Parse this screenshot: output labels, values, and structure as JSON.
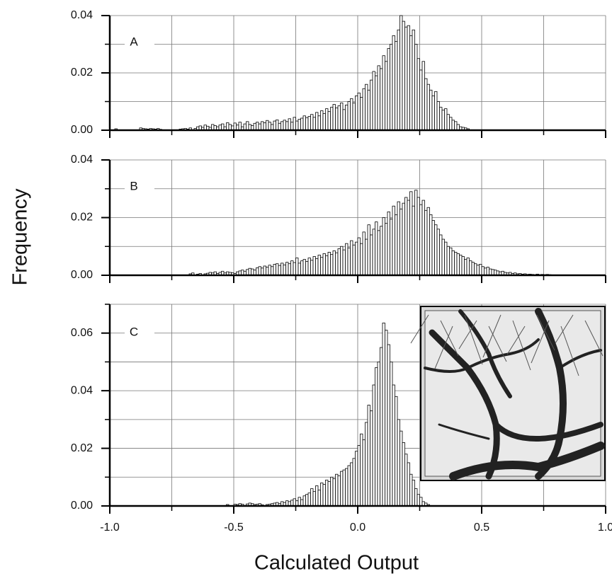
{
  "ylabel": "Frequency",
  "xlabel": "Calculated Output",
  "chart_data": [
    {
      "type": "histogram",
      "annotation": "A",
      "color": "#ffffff",
      "grid": true,
      "xlim": [
        -1,
        1
      ],
      "xticks": [
        -1,
        -0.5,
        0,
        0.5,
        1
      ],
      "xminorticks": [
        -0.75,
        -0.25,
        0.25,
        0.75
      ],
      "ylim": [
        0,
        0.04
      ],
      "yticks": [
        {
          "value": 0,
          "label": "0.00"
        },
        {
          "value": 0.02,
          "label": "0.02"
        },
        {
          "value": 0.04,
          "label": "0.04"
        }
      ],
      "yminorticks": [
        0.01,
        0.03
      ],
      "bins": [
        -0.98,
        -0.97,
        -0.96,
        -0.95,
        -0.94,
        -0.93,
        -0.92,
        -0.91,
        -0.9,
        -0.89,
        -0.88,
        -0.87,
        -0.86,
        -0.85,
        -0.84,
        -0.83,
        -0.82,
        -0.81,
        -0.8,
        -0.79,
        -0.78,
        -0.77,
        -0.76,
        -0.75,
        -0.74,
        -0.73,
        -0.72,
        -0.71,
        -0.7,
        -0.69,
        -0.68,
        -0.67,
        -0.66,
        -0.65,
        -0.64,
        -0.63,
        -0.62,
        -0.61,
        -0.6,
        -0.59,
        -0.58,
        -0.57,
        -0.56,
        -0.55,
        -0.54,
        -0.53,
        -0.52,
        -0.51,
        -0.5,
        -0.49,
        -0.48,
        -0.47,
        -0.46,
        -0.45,
        -0.44,
        -0.43,
        -0.42,
        -0.41,
        -0.4,
        -0.39,
        -0.38,
        -0.37,
        -0.36,
        -0.35,
        -0.34,
        -0.33,
        -0.32,
        -0.31,
        -0.3,
        -0.29,
        -0.28,
        -0.27,
        -0.26,
        -0.25,
        -0.24,
        -0.23,
        -0.22,
        -0.21,
        -0.2,
        -0.19,
        -0.18,
        -0.17,
        -0.16,
        -0.15,
        -0.14,
        -0.13,
        -0.12,
        -0.11,
        -0.1,
        -0.09,
        -0.08,
        -0.07,
        -0.06,
        -0.05,
        -0.04,
        -0.03,
        -0.02,
        -0.01,
        0,
        0.01,
        0.02,
        0.03,
        0.04,
        0.05,
        0.06,
        0.07,
        0.08,
        0.09,
        0.1,
        0.11,
        0.12,
        0.13,
        0.14,
        0.15,
        0.16,
        0.17,
        0.18,
        0.19,
        0.2,
        0.21,
        0.22,
        0.23,
        0.24,
        0.25,
        0.26,
        0.27,
        0.28,
        0.29,
        0.3,
        0.31,
        0.32,
        0.33,
        0.34,
        0.35,
        0.36,
        0.37,
        0.38,
        0.39,
        0.4,
        0.41,
        0.42,
        0.43,
        0.44,
        0.45
      ],
      "values": [
        0.0005,
        0,
        0,
        0,
        0,
        0,
        0,
        0,
        0,
        0,
        0.0008,
        0.0006,
        0.0005,
        0.0004,
        0.0006,
        0.0005,
        0.0004,
        0.0006,
        0.0003,
        0,
        0,
        0,
        0,
        0,
        0,
        0,
        0.0004,
        0.0005,
        0.0006,
        0.0004,
        0.0008,
        0,
        0.0006,
        0.0012,
        0.0015,
        0.001,
        0.0018,
        0.0014,
        0.001,
        0.002,
        0.0016,
        0.0012,
        0.0018,
        0.0022,
        0.0012,
        0.0026,
        0.002,
        0.0015,
        0.0025,
        0.0018,
        0.0028,
        0.0012,
        0.0022,
        0.003,
        0.002,
        0.0016,
        0.0024,
        0.0028,
        0.0022,
        0.003,
        0.0026,
        0.0034,
        0.0028,
        0.002,
        0.0032,
        0.0036,
        0.0024,
        0.003,
        0.0035,
        0.003,
        0.004,
        0.0028,
        0.0045,
        0.0032,
        0.0038,
        0.0042,
        0.005,
        0.0044,
        0.0048,
        0.0055,
        0.0045,
        0.0062,
        0.005,
        0.0068,
        0.0058,
        0.0075,
        0.0065,
        0.008,
        0.009,
        0.0078,
        0.0085,
        0.0095,
        0.0072,
        0.0088,
        0.01,
        0.011,
        0.0095,
        0.012,
        0.013,
        0.0115,
        0.0145,
        0.016,
        0.014,
        0.0175,
        0.0205,
        0.019,
        0.0225,
        0.0215,
        0.026,
        0.024,
        0.0285,
        0.03,
        0.033,
        0.031,
        0.035,
        0.04,
        0.038,
        0.036,
        0.0365,
        0.033,
        0.035,
        0.03,
        0.025,
        0.021,
        0.024,
        0.018,
        0.016,
        0.014,
        0.012,
        0.0135,
        0.01,
        0.008,
        0.007,
        0.0075,
        0.0055,
        0.0045,
        0.0035,
        0.003,
        0.002,
        0.0012,
        0.001,
        0.0008,
        0.0005
      ]
    },
    {
      "type": "histogram",
      "annotation": "B",
      "color": "#ffffff",
      "grid": true,
      "xlim": [
        -1,
        1
      ],
      "xticks": [
        -1,
        -0.5,
        0,
        0.5,
        1
      ],
      "xminorticks": [
        -0.75,
        -0.25,
        0.25,
        0.75
      ],
      "ylim": [
        0,
        0.04
      ],
      "yticks": [
        {
          "value": 0,
          "label": "0.00"
        },
        {
          "value": 0.02,
          "label": "0.02"
        },
        {
          "value": 0.04,
          "label": "0.04"
        }
      ],
      "yminorticks": [
        0.01,
        0.03
      ],
      "bins": [
        -0.68,
        -0.67,
        -0.66,
        -0.65,
        -0.64,
        -0.63,
        -0.62,
        -0.61,
        -0.6,
        -0.59,
        -0.58,
        -0.57,
        -0.56,
        -0.55,
        -0.54,
        -0.53,
        -0.52,
        -0.51,
        -0.5,
        -0.49,
        -0.48,
        -0.47,
        -0.46,
        -0.45,
        -0.44,
        -0.43,
        -0.42,
        -0.41,
        -0.4,
        -0.39,
        -0.38,
        -0.37,
        -0.36,
        -0.35,
        -0.34,
        -0.33,
        -0.32,
        -0.31,
        -0.3,
        -0.29,
        -0.28,
        -0.27,
        -0.26,
        -0.25,
        -0.24,
        -0.23,
        -0.22,
        -0.21,
        -0.2,
        -0.19,
        -0.18,
        -0.17,
        -0.16,
        -0.15,
        -0.14,
        -0.13,
        -0.12,
        -0.11,
        -0.1,
        -0.09,
        -0.08,
        -0.07,
        -0.06,
        -0.05,
        -0.04,
        -0.03,
        -0.02,
        -0.01,
        0,
        0.01,
        0.02,
        0.03,
        0.04,
        0.05,
        0.06,
        0.07,
        0.08,
        0.09,
        0.1,
        0.11,
        0.12,
        0.13,
        0.14,
        0.15,
        0.16,
        0.17,
        0.18,
        0.19,
        0.2,
        0.21,
        0.22,
        0.23,
        0.24,
        0.25,
        0.26,
        0.27,
        0.28,
        0.29,
        0.3,
        0.31,
        0.32,
        0.33,
        0.34,
        0.35,
        0.36,
        0.37,
        0.38,
        0.39,
        0.4,
        0.41,
        0.42,
        0.43,
        0.44,
        0.45,
        0.46,
        0.47,
        0.48,
        0.49,
        0.5,
        0.51,
        0.52,
        0.53,
        0.54,
        0.55,
        0.56,
        0.57,
        0.58,
        0.59,
        0.6,
        0.61,
        0.62,
        0.63,
        0.64,
        0.65,
        0.66,
        0.67,
        0.68,
        0.69,
        0.7,
        0.71,
        0.72,
        0.73,
        0.74,
        0.75,
        0.76,
        0.77,
        0.78
      ],
      "values": [
        0.0005,
        0.0008,
        0,
        0.0004,
        0.0006,
        0,
        0.0005,
        0.0007,
        0.001,
        0.0008,
        0.0012,
        0.0006,
        0.001,
        0.0014,
        0.0008,
        0.0012,
        0.001,
        0.0009,
        0.0006,
        0.0012,
        0.0015,
        0.0018,
        0.0014,
        0.002,
        0.0024,
        0.0022,
        0.0018,
        0.0026,
        0.003,
        0.0025,
        0.0032,
        0.0028,
        0.0035,
        0.003,
        0.0038,
        0.004,
        0.0034,
        0.0042,
        0.0036,
        0.0045,
        0.004,
        0.005,
        0.0044,
        0.006,
        0.0042,
        0.005,
        0.0055,
        0.0048,
        0.006,
        0.0052,
        0.0065,
        0.0058,
        0.007,
        0.0062,
        0.0075,
        0.0068,
        0.008,
        0.0072,
        0.0085,
        0.0078,
        0.0092,
        0.01,
        0.0088,
        0.011,
        0.0095,
        0.012,
        0.0105,
        0.0115,
        0.013,
        0.011,
        0.015,
        0.0125,
        0.0175,
        0.014,
        0.016,
        0.0185,
        0.0155,
        0.017,
        0.02,
        0.018,
        0.022,
        0.0195,
        0.024,
        0.021,
        0.0255,
        0.023,
        0.025,
        0.027,
        0.026,
        0.029,
        0.024,
        0.0295,
        0.027,
        0.0245,
        0.026,
        0.0225,
        0.0235,
        0.021,
        0.019,
        0.0175,
        0.016,
        0.014,
        0.0125,
        0.0115,
        0.01,
        0.0095,
        0.0085,
        0.008,
        0.0075,
        0.007,
        0.0065,
        0.0055,
        0.006,
        0.005,
        0.0045,
        0.004,
        0.0035,
        0.0038,
        0.003,
        0.0025,
        0.0028,
        0.0022,
        0.002,
        0.0018,
        0.0015,
        0.0012,
        0.0014,
        0.001,
        0.0008,
        0.001,
        0.0006,
        0.0008,
        0.0005,
        0.0006,
        0.0004,
        0.0005,
        0.0003,
        0.0004,
        0.0003,
        0.0002,
        0.0004,
        0.0002,
        0.0003,
        0.0002,
        0.0003,
        0.0002
      ]
    },
    {
      "type": "histogram",
      "annotation": "C",
      "color": "#ffffff",
      "grid": true,
      "xlim": [
        -1,
        1
      ],
      "xticks": [
        {
          "value": -1,
          "label": "-1.0"
        },
        {
          "value": -0.5,
          "label": "-0.5"
        },
        {
          "value": 0,
          "label": "0.0"
        },
        {
          "value": 0.5,
          "label": "0.5"
        },
        {
          "value": 1,
          "label": "1.0"
        }
      ],
      "xminorticks": [
        -0.75,
        -0.25,
        0.25,
        0.75
      ],
      "ylim": [
        0,
        0.07
      ],
      "yticks": [
        {
          "value": 0,
          "label": "0.00"
        },
        {
          "value": 0.02,
          "label": "0.02"
        },
        {
          "value": 0.04,
          "label": "0.04"
        },
        {
          "value": 0.06,
          "label": "0.06"
        }
      ],
      "yminorticks": [
        0.01,
        0.03,
        0.05,
        0.07
      ],
      "bins": [
        -0.53,
        -0.52,
        -0.51,
        -0.5,
        -0.49,
        -0.48,
        -0.47,
        -0.46,
        -0.45,
        -0.44,
        -0.43,
        -0.42,
        -0.41,
        -0.4,
        -0.39,
        -0.38,
        -0.37,
        -0.36,
        -0.35,
        -0.34,
        -0.33,
        -0.32,
        -0.31,
        -0.3,
        -0.29,
        -0.28,
        -0.27,
        -0.26,
        -0.25,
        -0.24,
        -0.23,
        -0.22,
        -0.21,
        -0.2,
        -0.19,
        -0.18,
        -0.17,
        -0.16,
        -0.15,
        -0.14,
        -0.13,
        -0.12,
        -0.11,
        -0.1,
        -0.09,
        -0.08,
        -0.07,
        -0.06,
        -0.05,
        -0.04,
        -0.03,
        -0.02,
        -0.01,
        0,
        0.01,
        0.02,
        0.03,
        0.04,
        0.05,
        0.06,
        0.07,
        0.08,
        0.09,
        0.1,
        0.11,
        0.12,
        0.13,
        0.14,
        0.15,
        0.16,
        0.17,
        0.18,
        0.19,
        0.2,
        0.21,
        0.22,
        0.23,
        0.24,
        0.25,
        0.26,
        0.27,
        0.28,
        0.29
      ],
      "values": [
        0.0005,
        0,
        0,
        0.0006,
        0.0005,
        0.0008,
        0.0006,
        0,
        0.0007,
        0.001,
        0.0008,
        0.0005,
        0.0006,
        0.0008,
        0.0004,
        0,
        0.0005,
        0.0006,
        0.0008,
        0.001,
        0.0012,
        0.0008,
        0.0015,
        0.0012,
        0.0018,
        0.0015,
        0.002,
        0.0025,
        0.0018,
        0.003,
        0.0022,
        0.0035,
        0.004,
        0.0045,
        0.006,
        0.005,
        0.007,
        0.0055,
        0.008,
        0.0075,
        0.009,
        0.0085,
        0.01,
        0.0095,
        0.011,
        0.0105,
        0.012,
        0.0125,
        0.013,
        0.014,
        0.015,
        0.0165,
        0.019,
        0.021,
        0.025,
        0.023,
        0.029,
        0.035,
        0.033,
        0.042,
        0.048,
        0.05,
        0.055,
        0.0635,
        0.061,
        0.056,
        0.05,
        0.042,
        0.038,
        0.03,
        0.026,
        0.022,
        0.018,
        0.015,
        0.011,
        0.009,
        0.006,
        0.004,
        0.003,
        0.0015,
        0.001,
        0.0005
      ]
    }
  ]
}
